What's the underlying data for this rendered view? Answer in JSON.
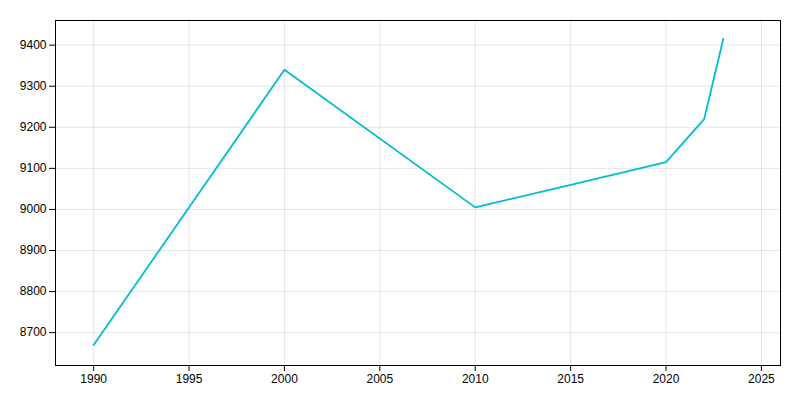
{
  "chart_data": {
    "type": "line",
    "x": [
      1990,
      2000,
      2010,
      2015,
      2020,
      2022,
      2023
    ],
    "values": [
      8670,
      9340,
      9005,
      9060,
      9115,
      9220,
      9415
    ],
    "color": "#00BCD4",
    "xlim": [
      1988,
      2026
    ],
    "ylim": [
      8620,
      9460
    ],
    "xticks": [
      1990,
      1995,
      2000,
      2005,
      2010,
      2015,
      2020,
      2025
    ],
    "yticks": [
      8700,
      8800,
      8900,
      9000,
      9100,
      9200,
      9300,
      9400
    ],
    "grid": true
  }
}
